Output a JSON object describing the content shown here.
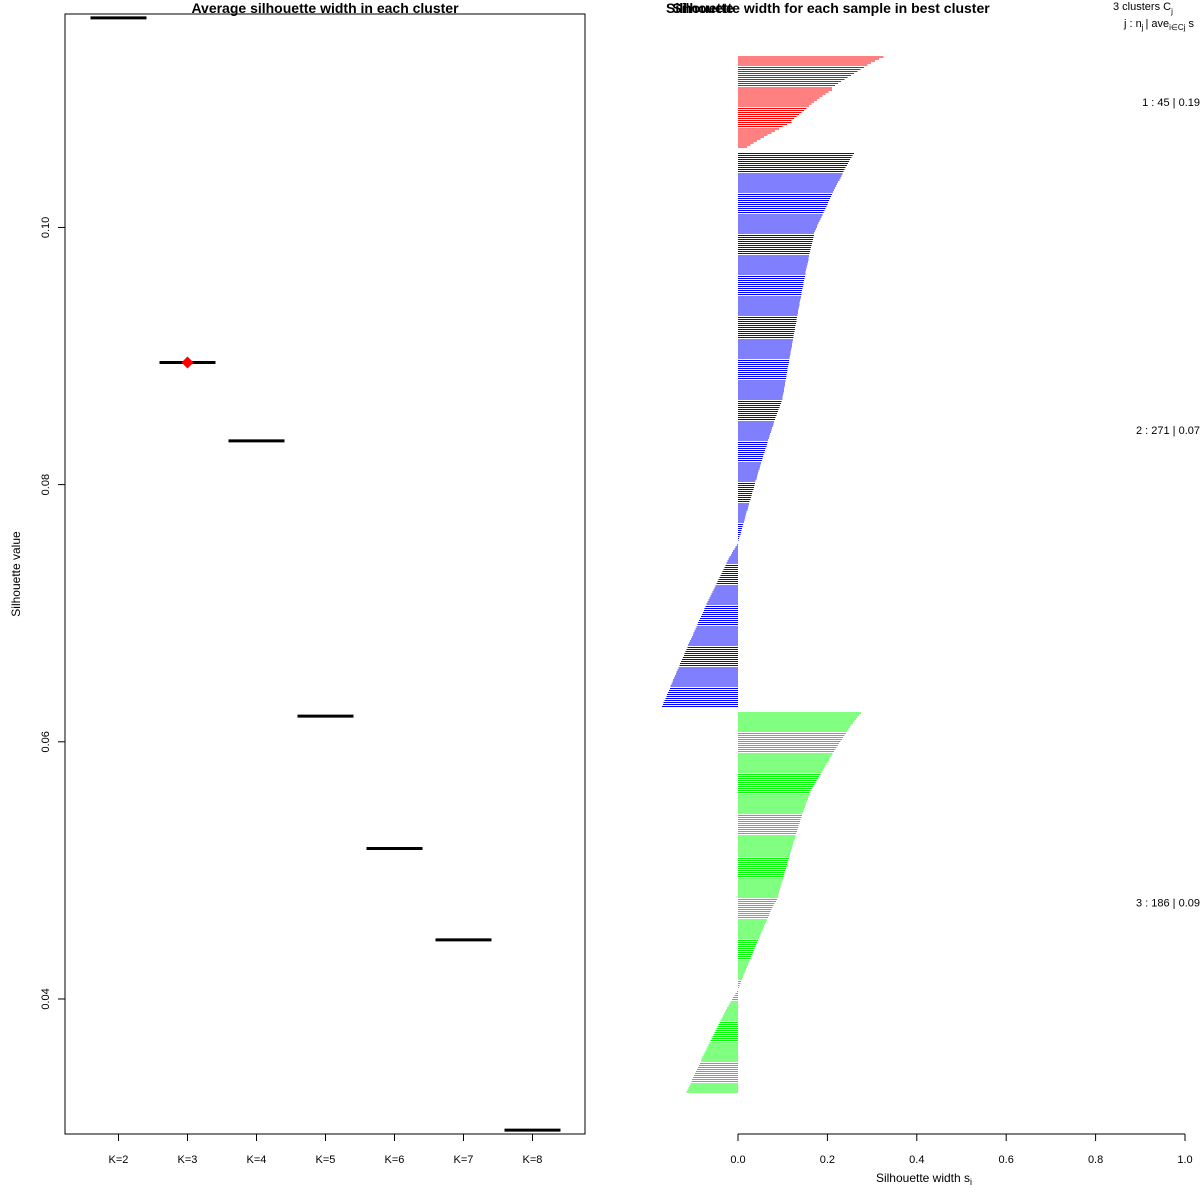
{
  "chart_data": [
    {
      "type": "dot",
      "title": "Average silhouette width in each cluster",
      "xlabel": "",
      "ylabel": "Silhouette value",
      "categories": [
        "K=2",
        "K=3",
        "K=4",
        "K=5",
        "K=6",
        "K=7",
        "K=8"
      ],
      "values": [
        0.1163,
        0.0895,
        0.0834,
        0.062,
        0.0517,
        0.0446,
        0.0298
      ],
      "best_category": "K=3",
      "best_color": "#ff0000",
      "ylim": [
        0.0295,
        0.1166
      ],
      "yticks": [
        "0.04",
        "0.06",
        "0.08",
        "0.10"
      ]
    },
    {
      "type": "bar",
      "orientation": "horizontal",
      "title": "Silhouette width for each sample in best cluster",
      "title_overlap_text": "Silhouette",
      "xlabel": "Silhouette width s",
      "xlabel_subscript": "i",
      "xlim": [
        0.0,
        1.0
      ],
      "xticks": [
        "0.0",
        "0.2",
        "0.4",
        "0.6",
        "0.8",
        "1.0"
      ],
      "legend_header": "3  clusters  C",
      "legend_header_sub": "j",
      "legend_subheader": "j :  n",
      "legend_subheader_n_sub": "j",
      "legend_subheader_ave": "| ave",
      "legend_subheader_ave_sub": "i∈Cj",
      "legend_subheader_tail": "s",
      "series": [
        {
          "name": "Cluster 1",
          "color": "#ff0000",
          "n": 45,
          "avg": 0.19,
          "label": "1 :  45  |  0.19",
          "ranges": [
            [
              0.325,
              0.21,
              16
            ],
            [
              0.21,
              0.12,
              16
            ],
            [
              0.12,
              0.02,
              13
            ]
          ]
        },
        {
          "name": "Cluster 2",
          "color": "#0000ff",
          "n": 271,
          "avg": 0.07,
          "label": "2 :  271  |  0.07",
          "ranges": [
            [
              0.26,
              0.17,
              40
            ],
            [
              0.17,
              0.1,
              80
            ],
            [
              0.1,
              0.0,
              71
            ],
            [
              -0.002,
              -0.17,
              80
            ]
          ]
        },
        {
          "name": "Cluster 3",
          "color": "#00ff00",
          "n": 186,
          "avg": 0.09,
          "label": "3 :  186  |  0.09",
          "ranges": [
            [
              0.275,
              0.16,
              40
            ],
            [
              0.16,
              0.09,
              50
            ],
            [
              0.09,
              0.0,
              46
            ],
            [
              -0.002,
              -0.115,
              50
            ]
          ]
        }
      ]
    }
  ]
}
